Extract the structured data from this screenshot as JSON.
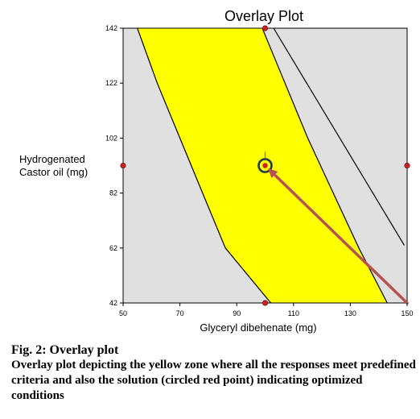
{
  "chart_data": {
    "type": "contour",
    "title": "Overlay Plot",
    "xlabel": "Glyceryl dibehenate (mg)",
    "ylabel": [
      "Hydrogenated",
      "Castor oil (mg)"
    ],
    "xlim": [
      50,
      150
    ],
    "ylim": [
      42,
      142
    ],
    "xticks": [
      50,
      70,
      90,
      110,
      130,
      150
    ],
    "yticks": [
      42,
      62,
      82,
      102,
      122,
      142
    ],
    "regions": [
      {
        "role": "feasible zone (all responses meet criteria)",
        "color": "#ffff00",
        "left_boundary": [
          [
            55,
            142
          ],
          [
            62,
            122
          ],
          [
            70,
            102
          ],
          [
            78,
            82
          ],
          [
            86,
            62
          ],
          [
            102,
            42
          ]
        ],
        "right_boundary": [
          [
            99,
            142
          ],
          [
            107,
            122
          ],
          [
            115,
            102
          ],
          [
            124,
            82
          ],
          [
            133,
            62
          ],
          [
            143,
            42
          ]
        ]
      }
    ],
    "boundary_line": [
      [
        103,
        142
      ],
      [
        149,
        63
      ]
    ],
    "design_points": [
      [
        100,
        142
      ],
      [
        50,
        92
      ],
      [
        150,
        92
      ],
      [
        100,
        42
      ]
    ],
    "solution_point": {
      "x": 100,
      "y": 92
    },
    "annotation_arrow": {
      "from": [
        150,
        42
      ],
      "to": [
        101,
        91
      ]
    },
    "colors": {
      "background": "#e0e0e0",
      "feasible": "#ffff00",
      "point": "#cc2222",
      "arrow": "#b55353",
      "circle": "#1f3a4d"
    }
  },
  "caption": {
    "title": "Fig. 2: Overlay plot",
    "body": "Overlay plot depicting the yellow zone where all the responses meet predefined criteria and also the solution (circled red point) indicating optimized conditions"
  }
}
